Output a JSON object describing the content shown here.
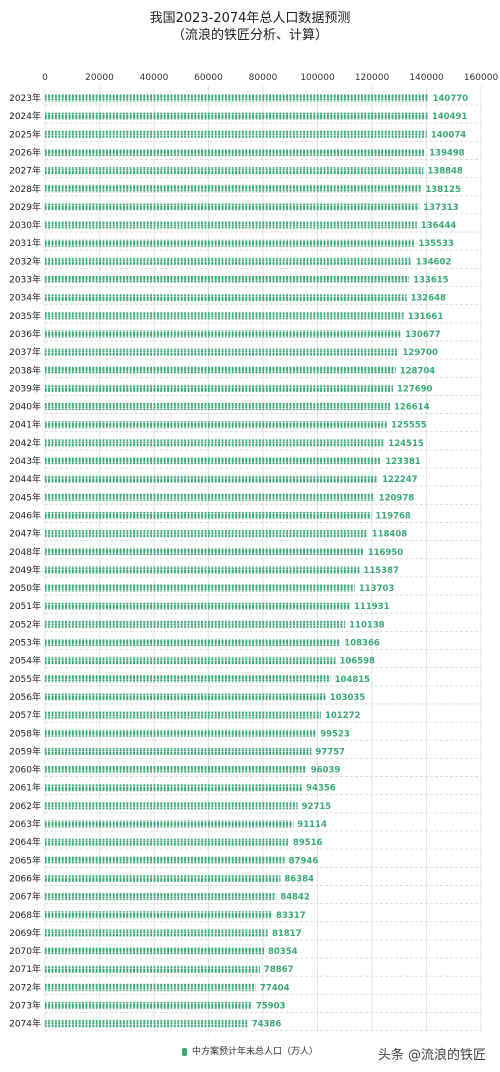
{
  "chart_data": {
    "type": "bar",
    "orientation": "horizontal",
    "title": "我国2023-2074年总人口数据预测",
    "subtitle": "（流浪的铁匠分析、计算）",
    "xlim": [
      0,
      160000
    ],
    "xticks": [
      "0",
      "20000",
      "40000",
      "60000",
      "80000",
      "100000",
      "120000",
      "140000",
      "160000"
    ],
    "xtick_values": [
      0,
      20000,
      40000,
      60000,
      80000,
      100000,
      120000,
      140000,
      160000
    ],
    "categories": [
      "2023年",
      "2024年",
      "2025年",
      "2026年",
      "2027年",
      "2028年",
      "2029年",
      "2030年",
      "2031年",
      "2032年",
      "2033年",
      "2034年",
      "2035年",
      "2036年",
      "2037年",
      "2038年",
      "2039年",
      "2040年",
      "2041年",
      "2042年",
      "2043年",
      "2044年",
      "2045年",
      "2046年",
      "2047年",
      "2048年",
      "2049年",
      "2050年",
      "2051年",
      "2052年",
      "2053年",
      "2054年",
      "2055年",
      "2056年",
      "2057年",
      "2058年",
      "2059年",
      "2060年",
      "2061年",
      "2062年",
      "2063年",
      "2064年",
      "2065年",
      "2066年",
      "2067年",
      "2068年",
      "2069年",
      "2070年",
      "2071年",
      "2072年",
      "2073年",
      "2074年"
    ],
    "series": [
      {
        "name": "中方案预计年末总人口（万人）",
        "values": [
          140770,
          140491,
          140074,
          139498,
          138848,
          138125,
          137313,
          136444,
          135533,
          134602,
          133615,
          132648,
          131661,
          130677,
          129700,
          128704,
          127690,
          126614,
          125555,
          124515,
          123381,
          122247,
          120978,
          119768,
          118408,
          116950,
          115387,
          113703,
          111931,
          110138,
          108366,
          106598,
          104815,
          103035,
          101272,
          99523,
          97757,
          96039,
          94356,
          92715,
          91114,
          89516,
          87946,
          86384,
          84842,
          83317,
          81817,
          80354,
          78867,
          77404,
          75903,
          74386
        ]
      }
    ],
    "grid": true,
    "legend_position": "bottom",
    "bar_color": "#3aaa78"
  },
  "watermark": "头条 @流浪的铁匠"
}
